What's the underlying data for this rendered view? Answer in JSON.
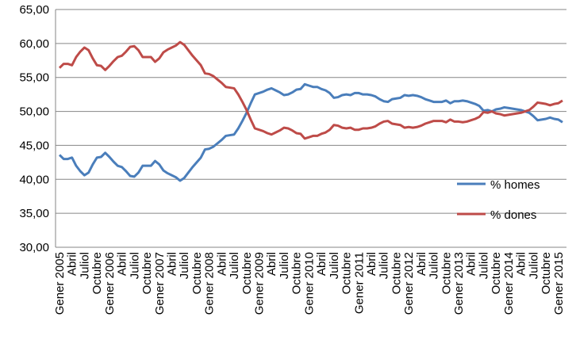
{
  "chart_data": {
    "type": "line",
    "categories": [
      "Gener 2005",
      null,
      null,
      "Abril",
      null,
      null,
      "Juliol",
      null,
      null,
      "Octubre",
      null,
      null,
      "Gener 2006",
      null,
      null,
      "Abril",
      null,
      null,
      "Juliol",
      null,
      null,
      "Octubre",
      null,
      null,
      "Gener 2007",
      null,
      null,
      "Abril",
      null,
      null,
      "Juliol",
      null,
      null,
      "Octubre",
      null,
      null,
      "Gener 2008",
      null,
      null,
      "Abril",
      null,
      null,
      "Juliol",
      null,
      null,
      "Octubre",
      null,
      null,
      "Gener 2009",
      null,
      null,
      "Abril",
      null,
      null,
      "Juliol",
      null,
      null,
      "Octubre",
      null,
      null,
      "Gener 2010",
      null,
      null,
      "Abril",
      null,
      null,
      "Juliol",
      null,
      null,
      "Octubre",
      null,
      null,
      "Gener 2011",
      null,
      null,
      "Abril",
      null,
      null,
      "Juliol",
      null,
      null,
      "Octubre",
      null,
      null,
      "Gener 2012",
      null,
      null,
      "Abril",
      null,
      null,
      "Juliol",
      null,
      null,
      "Octubre",
      null,
      null,
      "Gener 2013",
      null,
      null,
      "Abril",
      null,
      null,
      "Juliol",
      null,
      null,
      "Octubre",
      null,
      null,
      "Gener 2014",
      null,
      null,
      "Abril",
      null,
      null,
      "Juliol",
      null,
      null,
      "Octubre",
      null,
      null,
      "Gener 2015",
      null
    ],
    "series": [
      {
        "name": "% homes",
        "color": "#4a7ebb",
        "values": [
          43.6,
          43.0,
          43.0,
          43.2,
          42.0,
          41.2,
          40.6,
          41.0,
          42.2,
          43.2,
          43.3,
          43.9,
          43.3,
          42.6,
          42.0,
          41.8,
          41.2,
          40.5,
          40.4,
          41.0,
          42.0,
          42.0,
          42.0,
          42.7,
          42.2,
          41.3,
          40.9,
          40.6,
          40.3,
          39.8,
          40.2,
          41.0,
          41.8,
          42.5,
          43.2,
          44.4,
          44.5,
          44.8,
          45.3,
          45.8,
          46.4,
          46.5,
          46.6,
          47.5,
          48.6,
          49.8,
          51.2,
          52.5,
          52.7,
          52.9,
          53.2,
          53.4,
          53.1,
          52.8,
          52.4,
          52.5,
          52.8,
          53.2,
          53.3,
          54.0,
          53.8,
          53.6,
          53.6,
          53.3,
          53.1,
          52.7,
          52.0,
          52.1,
          52.4,
          52.5,
          52.4,
          52.7,
          52.7,
          52.5,
          52.5,
          52.4,
          52.2,
          51.8,
          51.5,
          51.4,
          51.8,
          51.9,
          52.0,
          52.4,
          52.3,
          52.4,
          52.3,
          52.1,
          51.8,
          51.6,
          51.4,
          51.4,
          51.4,
          51.6,
          51.2,
          51.5,
          51.5,
          51.6,
          51.5,
          51.3,
          51.1,
          50.8,
          50.1,
          50.2,
          50.0,
          50.3,
          50.4,
          50.6,
          50.5,
          50.4,
          50.3,
          50.2,
          50.0,
          49.8,
          49.3,
          48.7,
          48.8,
          48.9,
          49.1,
          48.9,
          48.8,
          48.4
        ]
      },
      {
        "name": "% dones",
        "color": "#be4b48",
        "values": [
          56.4,
          57.0,
          57.0,
          56.8,
          58.0,
          58.8,
          59.4,
          59.0,
          57.8,
          56.8,
          56.7,
          56.1,
          56.7,
          57.4,
          58.0,
          58.2,
          58.8,
          59.5,
          59.6,
          59.0,
          58.0,
          58.0,
          58.0,
          57.3,
          57.8,
          58.7,
          59.1,
          59.4,
          59.7,
          60.2,
          59.8,
          59.0,
          58.2,
          57.5,
          56.8,
          55.6,
          55.5,
          55.2,
          54.7,
          54.2,
          53.6,
          53.5,
          53.4,
          52.5,
          51.4,
          50.2,
          48.8,
          47.5,
          47.3,
          47.1,
          46.8,
          46.6,
          46.9,
          47.2,
          47.6,
          47.5,
          47.2,
          46.8,
          46.7,
          46.0,
          46.2,
          46.4,
          46.4,
          46.7,
          46.9,
          47.3,
          48.0,
          47.9,
          47.6,
          47.5,
          47.6,
          47.3,
          47.3,
          47.5,
          47.5,
          47.6,
          47.8,
          48.2,
          48.5,
          48.6,
          48.2,
          48.1,
          48.0,
          47.6,
          47.7,
          47.6,
          47.7,
          47.9,
          48.2,
          48.4,
          48.6,
          48.6,
          48.6,
          48.4,
          48.8,
          48.5,
          48.5,
          48.4,
          48.5,
          48.7,
          48.9,
          49.2,
          49.9,
          49.8,
          50.0,
          49.7,
          49.6,
          49.4,
          49.5,
          49.6,
          49.7,
          49.8,
          50.0,
          50.2,
          50.7,
          51.3,
          51.2,
          51.1,
          50.9,
          51.1,
          51.2,
          51.6
        ]
      }
    ],
    "ylim": [
      30,
      65
    ],
    "yticks": [
      {
        "value": 30,
        "label": "30,00"
      },
      {
        "value": 35,
        "label": "35,00"
      },
      {
        "value": 40,
        "label": "40,00"
      },
      {
        "value": 45,
        "label": "45,00"
      },
      {
        "value": 50,
        "label": "50,00"
      },
      {
        "value": 55,
        "label": "55,00"
      },
      {
        "value": 60,
        "label": "60,00"
      },
      {
        "value": 65,
        "label": "65,00"
      }
    ],
    "grid": true
  }
}
